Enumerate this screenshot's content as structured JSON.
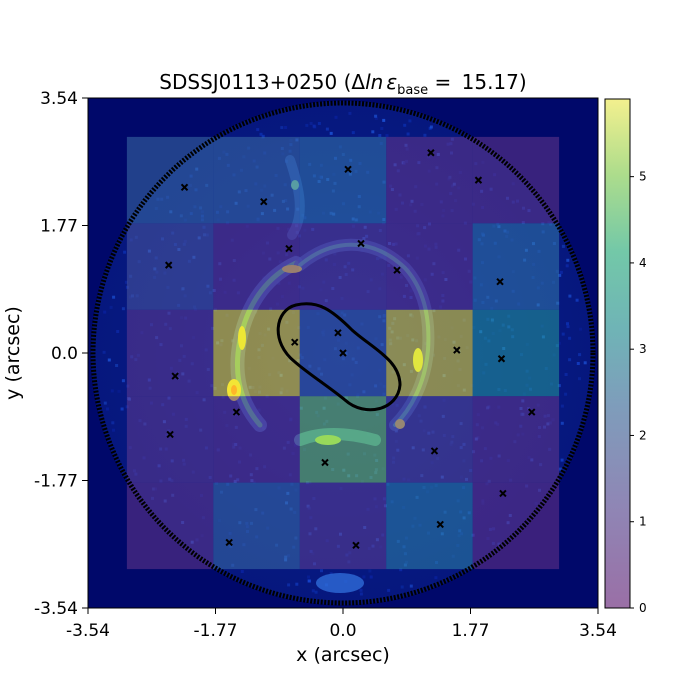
{
  "chart_data": {
    "type": "heatmap",
    "title": {
      "main": "SDSSJ0113+0250 (",
      "delta": "Δ",
      "ln": "ln",
      "epsilon": "ε",
      "sub": "base",
      "eq": " = ",
      "value": "15.17",
      "close": ")"
    },
    "xlabel": "x (arcsec)",
    "ylabel": "y (arcsec)",
    "xlim": [
      -3.54,
      3.54
    ],
    "ylim": [
      -3.54,
      3.54
    ],
    "x_ticks": [
      -3.54,
      -1.77,
      0.0,
      1.77,
      3.54
    ],
    "y_ticks": [
      -3.54,
      -1.77,
      0.0,
      1.77,
      3.54
    ],
    "x_tick_labels": [
      "-3.54",
      "-1.77",
      "0.0",
      "1.77",
      "3.54"
    ],
    "y_tick_labels": [
      "-3.54",
      "-1.77",
      "0.0",
      "1.77",
      "3.54"
    ],
    "colorbar": {
      "range": [
        0,
        5.9
      ],
      "ticks": [
        0,
        1,
        2,
        3,
        4,
        5
      ],
      "tick_labels": [
        "0",
        "1",
        "2",
        "3",
        "4",
        "5"
      ]
    },
    "grid_x_edges": [
      -3.0,
      -1.8,
      -0.6,
      0.6,
      1.8,
      3.0
    ],
    "grid_y_edges": [
      3.0,
      1.8,
      0.6,
      -0.6,
      -1.8,
      -3.0
    ],
    "cells": [
      [
        1.9,
        1.9,
        2.2,
        0.3,
        0.3
      ],
      [
        1.1,
        0.3,
        0.5,
        0.3,
        2.3
      ],
      [
        0.4,
        5.9,
        1.6,
        5.8,
        3.2
      ],
      [
        0.4,
        0.3,
        4.6,
        0.7,
        0.3
      ],
      [
        0.3,
        1.9,
        0.5,
        2.6,
        0.2
      ]
    ],
    "aperture_radius": 3.5,
    "markers": [
      [
        -2.2,
        2.3
      ],
      [
        -1.1,
        2.1
      ],
      [
        0.07,
        2.55
      ],
      [
        1.22,
        2.78
      ],
      [
        1.88,
        2.4
      ],
      [
        -0.75,
        1.45
      ],
      [
        0.25,
        1.52
      ],
      [
        0.75,
        1.15
      ],
      [
        -2.42,
        1.22
      ],
      [
        2.18,
        0.99
      ],
      [
        -0.67,
        0.15
      ],
      [
        -0.07,
        0.28
      ],
      [
        0.0,
        0.0
      ],
      [
        1.58,
        0.04
      ],
      [
        2.2,
        -0.08
      ],
      [
        -2.33,
        -0.32
      ],
      [
        -1.48,
        -0.82
      ],
      [
        2.62,
        -0.82
      ],
      [
        -2.4,
        -1.13
      ],
      [
        1.27,
        -1.36
      ],
      [
        -0.25,
        -1.52
      ],
      [
        2.22,
        -1.95
      ],
      [
        -1.58,
        -2.63
      ],
      [
        1.35,
        -2.38
      ],
      [
        0.18,
        -2.67
      ]
    ]
  }
}
